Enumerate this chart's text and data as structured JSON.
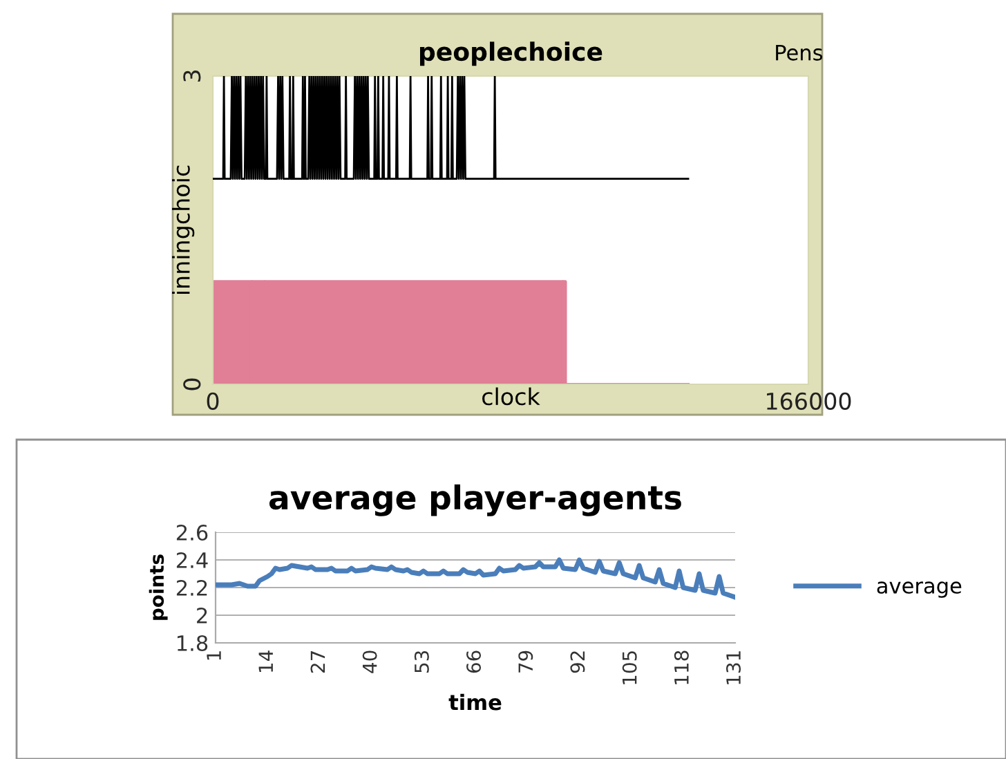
{
  "chart_data": [
    {
      "type": "line",
      "title": "peoplechoice",
      "xlabel": "clock",
      "ylabel": "inningchoic",
      "annotations": [
        "Pens"
      ],
      "xlim": [
        0,
        166000
      ],
      "ylim": [
        0,
        3
      ],
      "xticks": [
        0,
        166000
      ],
      "yticks": [
        0,
        3
      ],
      "grid": false,
      "series": [
        {
          "type": "area",
          "color": "#e07f96",
          "x": [
            0,
            10800,
            10800,
            11000,
            11000,
            14400,
            14400,
            14600,
            14600,
            97500,
            97500,
            97700,
            97700,
            98300,
            98300,
            132500
          ],
          "values": [
            1,
            1,
            0,
            0,
            1,
            1,
            0,
            0,
            1,
            1,
            0,
            0,
            1,
            1,
            0,
            0
          ]
        },
        {
          "type": "line",
          "color": "#000000",
          "x": [
            0,
            2900,
            3100,
            3300,
            5000,
            5300,
            5600,
            5900,
            6200,
            6500,
            6800,
            7100,
            7400,
            7700,
            8000,
            8900,
            9200,
            9500,
            9800,
            10100,
            10400,
            10700,
            11000,
            11300,
            11600,
            11900,
            12200,
            12500,
            12800,
            13100,
            13400,
            13700,
            14000,
            14300,
            14800,
            15000,
            15200,
            17900,
            18200,
            18500,
            18800,
            19100,
            19400,
            19700,
            21300,
            21500,
            21700,
            22200,
            22400,
            22600,
            24900,
            25100,
            25300,
            25500,
            25700,
            25900,
            26600,
            26900,
            27200,
            27500,
            27800,
            28100,
            28400,
            28700,
            29000,
            29300,
            29600,
            29900,
            30200,
            30500,
            30800,
            31100,
            31400,
            31700,
            32000,
            32300,
            32600,
            32900,
            33200,
            33500,
            33800,
            34100,
            34400,
            34700,
            35000,
            35300,
            35600,
            36900,
            37100,
            37300,
            39300,
            39600,
            39900,
            40200,
            40500,
            40800,
            41100,
            41400,
            41700,
            42000,
            42300,
            42600,
            42900,
            43200,
            43500,
            45000,
            45200,
            45400,
            45900,
            46100,
            46300,
            47300,
            47500,
            47700,
            48900,
            49100,
            49300,
            51100,
            51300,
            51500,
            54900,
            55100,
            55300,
            59800,
            60000,
            60200,
            60800,
            61000,
            61200,
            63400,
            63600,
            63800,
            65300,
            65500,
            65700,
            66500,
            66700,
            66900,
            68000,
            68300,
            68600,
            68900,
            69200,
            69500,
            69800,
            70100,
            70400,
            78400,
            78600,
            78800,
            132500
          ],
          "values": [
            2,
            2,
            3,
            2,
            2,
            3,
            2,
            3,
            2,
            3,
            2,
            3,
            2,
            3,
            2,
            2,
            3,
            2,
            3,
            2,
            3,
            2,
            3,
            2,
            3,
            2,
            3,
            2,
            3,
            2,
            3,
            2,
            3,
            2,
            2,
            3,
            2,
            2,
            3,
            2,
            3,
            2,
            3,
            2,
            2,
            3,
            2,
            2,
            3,
            2,
            2,
            3,
            2,
            2,
            3,
            2,
            2,
            3,
            2,
            3,
            2,
            3,
            2,
            3,
            2,
            3,
            2,
            3,
            2,
            3,
            2,
            3,
            2,
            3,
            2,
            3,
            2,
            3,
            2,
            3,
            2,
            3,
            2,
            3,
            2,
            3,
            2,
            2,
            3,
            2,
            2,
            3,
            2,
            3,
            2,
            3,
            2,
            3,
            2,
            3,
            2,
            3,
            2,
            3,
            2,
            2,
            3,
            2,
            2,
            3,
            2,
            2,
            3,
            2,
            2,
            3,
            2,
            2,
            3,
            2,
            2,
            3,
            2,
            2,
            3,
            2,
            2,
            3,
            2,
            2,
            3,
            2,
            2,
            3,
            2,
            2,
            3,
            2,
            2,
            3,
            2,
            3,
            2,
            3,
            2,
            3,
            2,
            2,
            3,
            2,
            2
          ]
        }
      ]
    },
    {
      "type": "line",
      "title": "average player-agents",
      "xlabel": "time",
      "ylabel": "points",
      "xlim": [
        1,
        131
      ],
      "xticks": [
        1,
        14,
        27,
        40,
        53,
        66,
        79,
        92,
        105,
        118,
        131
      ],
      "ylim": [
        1.8,
        2.6
      ],
      "yticks": [
        1.8,
        2,
        2.2,
        2.4,
        2.6
      ],
      "grid": "y",
      "legend": "right",
      "series": [
        {
          "name": "average",
          "color": "#4a7ebb",
          "x": [
            1,
            5,
            7,
            9,
            11,
            12,
            14,
            15,
            16,
            17,
            19,
            20,
            22,
            24,
            25,
            26,
            29,
            30,
            31,
            34,
            35,
            36,
            39,
            40,
            41,
            44,
            45,
            46,
            48,
            49,
            50,
            52,
            53,
            54,
            57,
            58,
            59,
            62,
            63,
            64,
            66,
            67,
            68,
            71,
            72,
            73,
            76,
            77,
            78,
            81,
            82,
            83,
            86,
            87,
            88,
            91,
            92,
            93,
            96,
            97,
            98,
            101,
            102,
            103,
            106,
            107,
            108,
            111,
            112,
            113,
            116,
            117,
            118,
            121,
            122,
            123,
            126,
            127,
            128,
            130,
            131
          ],
          "values": [
            2.22,
            2.22,
            2.23,
            2.21,
            2.21,
            2.25,
            2.28,
            2.3,
            2.34,
            2.33,
            2.34,
            2.36,
            2.35,
            2.34,
            2.35,
            2.33,
            2.33,
            2.34,
            2.32,
            2.32,
            2.34,
            2.32,
            2.33,
            2.35,
            2.34,
            2.33,
            2.35,
            2.33,
            2.32,
            2.33,
            2.31,
            2.3,
            2.32,
            2.3,
            2.3,
            2.32,
            2.3,
            2.3,
            2.33,
            2.31,
            2.3,
            2.32,
            2.29,
            2.3,
            2.34,
            2.32,
            2.33,
            2.36,
            2.34,
            2.35,
            2.38,
            2.35,
            2.35,
            2.4,
            2.34,
            2.33,
            2.4,
            2.34,
            2.31,
            2.39,
            2.32,
            2.3,
            2.38,
            2.3,
            2.27,
            2.36,
            2.27,
            2.24,
            2.33,
            2.23,
            2.2,
            2.32,
            2.2,
            2.18,
            2.3,
            2.18,
            2.16,
            2.28,
            2.16,
            2.14,
            2.13
          ]
        }
      ]
    }
  ]
}
